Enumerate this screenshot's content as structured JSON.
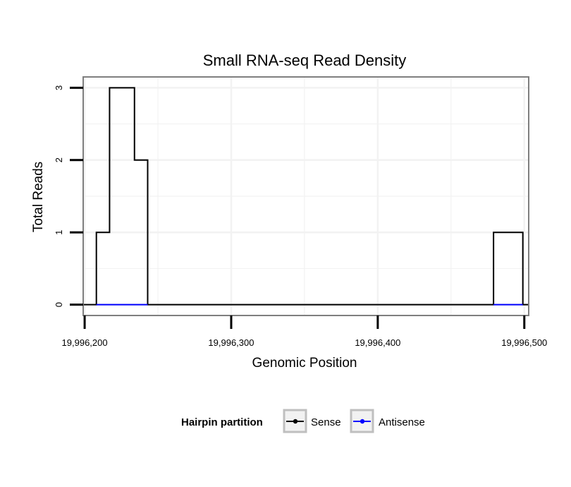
{
  "chart_data": {
    "type": "line",
    "title": "Small RNA-seq Read Density",
    "xlabel": "Genomic Position",
    "ylabel": "Total Reads",
    "xlim": [
      19996199,
      19996503
    ],
    "ylim": [
      -0.15,
      3.15
    ],
    "xticks": [
      19996200,
      19996300,
      19996400,
      19996500
    ],
    "xtick_labels": [
      "19,996,200",
      "19,996,300",
      "19,996,400",
      "19,996,500"
    ],
    "yticks": [
      0,
      1,
      2,
      3
    ],
    "ytick_labels": [
      "0",
      "1",
      "2",
      "3"
    ],
    "grid": true,
    "legend": {
      "title": "Hairpin partition",
      "position": "bottom",
      "entries": [
        {
          "label": "Sense",
          "color": "#000000"
        },
        {
          "label": "Antisense",
          "color": "#0000ff"
        }
      ]
    },
    "series": [
      {
        "name": "Sense",
        "color": "#000000",
        "x": [
          19996199,
          19996208,
          19996208,
          19996217,
          19996217,
          19996234,
          19996234,
          19996243,
          19996243,
          19996479,
          19996479,
          19996499,
          19996499,
          19996503
        ],
        "y": [
          0,
          0,
          1,
          1,
          3,
          3,
          2,
          2,
          0,
          0,
          1,
          1,
          0,
          0
        ]
      },
      {
        "name": "Antisense",
        "color": "#0000ff",
        "x": [
          19996208,
          19996243,
          19996479,
          19996499
        ],
        "y": [
          0,
          0,
          0,
          0
        ],
        "segments": [
          [
            0,
            1
          ],
          [
            2,
            3
          ]
        ]
      }
    ]
  }
}
